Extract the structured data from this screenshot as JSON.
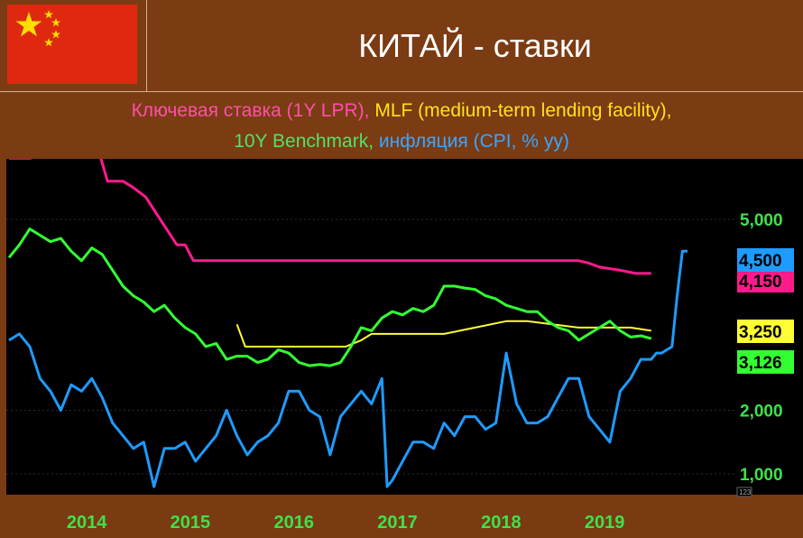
{
  "header": {
    "title": "КИТАЙ - ставки"
  },
  "subtitle": {
    "part_lpr": "Ключевая ставка (1Y LPR),",
    "part_mlf": "MLF (medium-term lending facility),",
    "part_10y": "10Y Benchmark,",
    "part_cpi": "инфляция (CPI, % yy)"
  },
  "colors": {
    "lpr": "#ff1a8c",
    "mlf": "#ffff33",
    "bond10y": "#33ff33",
    "cpi": "#1e9bff",
    "background": "#000000",
    "frame": "#7a3a12"
  },
  "chart_data": {
    "type": "line",
    "x_range": [
      2013.4,
      2020.0
    ],
    "y_range": [
      0.8,
      6.1
    ],
    "y_ticks": [
      {
        "value": 1.0,
        "label": "1,000"
      },
      {
        "value": 2.0,
        "label": "2,000"
      },
      {
        "value": 5.0,
        "label": "5,000"
      }
    ],
    "x_ticks": [
      {
        "value": 2014.0,
        "label": "2014"
      },
      {
        "value": 2015.0,
        "label": "2015"
      },
      {
        "value": 2016.0,
        "label": "2016"
      },
      {
        "value": 2017.0,
        "label": "2017"
      },
      {
        "value": 2018.0,
        "label": "2018"
      },
      {
        "value": 2019.0,
        "label": "2019"
      }
    ],
    "corner_label": "123",
    "series": [
      {
        "key": "lpr",
        "color": "#ff1a8c",
        "last_label": "4,150",
        "points": [
          [
            2013.5,
            5.96
          ],
          [
            2013.7,
            5.96
          ],
          [
            2013.8,
            6.0
          ],
          [
            2014.0,
            6.0
          ],
          [
            2014.2,
            6.0
          ],
          [
            2014.38,
            6.0
          ],
          [
            2014.45,
            5.6
          ],
          [
            2014.6,
            5.6
          ],
          [
            2014.7,
            5.5
          ],
          [
            2014.82,
            5.35
          ],
          [
            2014.92,
            5.1
          ],
          [
            2015.02,
            4.85
          ],
          [
            2015.12,
            4.6
          ],
          [
            2015.2,
            4.6
          ],
          [
            2015.28,
            4.35
          ],
          [
            2015.38,
            4.35
          ],
          [
            2015.45,
            4.35
          ],
          [
            2015.55,
            4.35
          ],
          [
            2016.0,
            4.35
          ],
          [
            2017.0,
            4.35
          ],
          [
            2018.0,
            4.35
          ],
          [
            2019.0,
            4.35
          ],
          [
            2019.1,
            4.31
          ],
          [
            2019.2,
            4.25
          ],
          [
            2019.4,
            4.2
          ],
          [
            2019.55,
            4.15
          ],
          [
            2019.7,
            4.15
          ]
        ]
      },
      {
        "key": "mlf",
        "color": "#ffff33",
        "last_label": "3,250",
        "points": [
          [
            2015.7,
            3.35
          ],
          [
            2015.78,
            3.0
          ],
          [
            2016.0,
            3.0
          ],
          [
            2016.5,
            3.0
          ],
          [
            2016.75,
            3.0
          ],
          [
            2016.9,
            3.1
          ],
          [
            2017.0,
            3.2
          ],
          [
            2017.3,
            3.2
          ],
          [
            2017.7,
            3.2
          ],
          [
            2017.85,
            3.25
          ],
          [
            2018.0,
            3.3
          ],
          [
            2018.3,
            3.4
          ],
          [
            2018.5,
            3.4
          ],
          [
            2019.0,
            3.3
          ],
          [
            2019.5,
            3.3
          ],
          [
            2019.7,
            3.25
          ]
        ]
      },
      {
        "key": "bond10y",
        "color": "#33ff33",
        "last_label": "3,126",
        "points": [
          [
            2013.5,
            4.4
          ],
          [
            2013.6,
            4.6
          ],
          [
            2013.7,
            4.85
          ],
          [
            2013.8,
            4.75
          ],
          [
            2013.9,
            4.65
          ],
          [
            2014.0,
            4.7
          ],
          [
            2014.1,
            4.5
          ],
          [
            2014.2,
            4.35
          ],
          [
            2014.3,
            4.55
          ],
          [
            2014.4,
            4.45
          ],
          [
            2014.5,
            4.2
          ],
          [
            2014.6,
            3.95
          ],
          [
            2014.7,
            3.8
          ],
          [
            2014.8,
            3.7
          ],
          [
            2014.9,
            3.55
          ],
          [
            2015.0,
            3.65
          ],
          [
            2015.1,
            3.45
          ],
          [
            2015.2,
            3.3
          ],
          [
            2015.3,
            3.2
          ],
          [
            2015.4,
            3.0
          ],
          [
            2015.5,
            3.05
          ],
          [
            2015.6,
            2.8
          ],
          [
            2015.7,
            2.85
          ],
          [
            2015.8,
            2.85
          ],
          [
            2015.9,
            2.75
          ],
          [
            2016.0,
            2.8
          ],
          [
            2016.1,
            2.95
          ],
          [
            2016.2,
            2.9
          ],
          [
            2016.3,
            2.75
          ],
          [
            2016.4,
            2.7
          ],
          [
            2016.5,
            2.72
          ],
          [
            2016.6,
            2.7
          ],
          [
            2016.7,
            2.75
          ],
          [
            2016.8,
            3.0
          ],
          [
            2016.9,
            3.3
          ],
          [
            2017.0,
            3.25
          ],
          [
            2017.1,
            3.45
          ],
          [
            2017.2,
            3.55
          ],
          [
            2017.3,
            3.5
          ],
          [
            2017.4,
            3.6
          ],
          [
            2017.5,
            3.55
          ],
          [
            2017.6,
            3.65
          ],
          [
            2017.7,
            3.95
          ],
          [
            2017.8,
            3.95
          ],
          [
            2017.9,
            3.92
          ],
          [
            2018.0,
            3.9
          ],
          [
            2018.1,
            3.8
          ],
          [
            2018.2,
            3.75
          ],
          [
            2018.3,
            3.65
          ],
          [
            2018.4,
            3.6
          ],
          [
            2018.5,
            3.55
          ],
          [
            2018.6,
            3.55
          ],
          [
            2018.7,
            3.4
          ],
          [
            2018.8,
            3.3
          ],
          [
            2018.9,
            3.25
          ],
          [
            2019.0,
            3.1
          ],
          [
            2019.1,
            3.2
          ],
          [
            2019.2,
            3.3
          ],
          [
            2019.3,
            3.4
          ],
          [
            2019.4,
            3.25
          ],
          [
            2019.5,
            3.15
          ],
          [
            2019.6,
            3.17
          ],
          [
            2019.7,
            3.126
          ]
        ]
      },
      {
        "key": "cpi",
        "color": "#1e9bff",
        "last_label": "4,500",
        "points": [
          [
            2013.5,
            3.1
          ],
          [
            2013.6,
            3.2
          ],
          [
            2013.7,
            3.0
          ],
          [
            2013.8,
            2.5
          ],
          [
            2013.9,
            2.3
          ],
          [
            2014.0,
            2.0
          ],
          [
            2014.1,
            2.4
          ],
          [
            2014.2,
            2.3
          ],
          [
            2014.3,
            2.5
          ],
          [
            2014.4,
            2.2
          ],
          [
            2014.5,
            1.8
          ],
          [
            2014.6,
            1.6
          ],
          [
            2014.7,
            1.4
          ],
          [
            2014.8,
            1.5
          ],
          [
            2014.9,
            0.8
          ],
          [
            2015.0,
            1.4
          ],
          [
            2015.1,
            1.4
          ],
          [
            2015.2,
            1.5
          ],
          [
            2015.3,
            1.2
          ],
          [
            2015.4,
            1.4
          ],
          [
            2015.5,
            1.6
          ],
          [
            2015.6,
            2.0
          ],
          [
            2015.7,
            1.6
          ],
          [
            2015.8,
            1.3
          ],
          [
            2015.9,
            1.5
          ],
          [
            2016.0,
            1.6
          ],
          [
            2016.1,
            1.8
          ],
          [
            2016.2,
            2.3
          ],
          [
            2016.3,
            2.3
          ],
          [
            2016.4,
            2.0
          ],
          [
            2016.5,
            1.9
          ],
          [
            2016.6,
            1.3
          ],
          [
            2016.7,
            1.9
          ],
          [
            2016.8,
            2.1
          ],
          [
            2016.9,
            2.3
          ],
          [
            2017.0,
            2.1
          ],
          [
            2017.1,
            2.5
          ],
          [
            2017.15,
            0.8
          ],
          [
            2017.2,
            0.9
          ],
          [
            2017.3,
            1.2
          ],
          [
            2017.4,
            1.5
          ],
          [
            2017.5,
            1.5
          ],
          [
            2017.6,
            1.4
          ],
          [
            2017.7,
            1.8
          ],
          [
            2017.8,
            1.6
          ],
          [
            2017.9,
            1.9
          ],
          [
            2018.0,
            1.9
          ],
          [
            2018.1,
            1.7
          ],
          [
            2018.2,
            1.8
          ],
          [
            2018.3,
            2.9
          ],
          [
            2018.4,
            2.1
          ],
          [
            2018.5,
            1.8
          ],
          [
            2018.6,
            1.8
          ],
          [
            2018.7,
            1.9
          ],
          [
            2018.8,
            2.2
          ],
          [
            2018.9,
            2.5
          ],
          [
            2019.0,
            2.5
          ],
          [
            2019.1,
            1.9
          ],
          [
            2019.2,
            1.7
          ],
          [
            2019.3,
            1.5
          ],
          [
            2019.4,
            2.3
          ],
          [
            2019.5,
            2.5
          ],
          [
            2019.6,
            2.8
          ],
          [
            2019.7,
            2.8
          ],
          [
            2019.75,
            2.9
          ],
          [
            2019.8,
            2.9
          ],
          [
            2019.9,
            3.0
          ],
          [
            2019.95,
            3.8
          ],
          [
            2020.0,
            4.5
          ],
          [
            2020.05,
            4.5
          ]
        ]
      }
    ]
  }
}
